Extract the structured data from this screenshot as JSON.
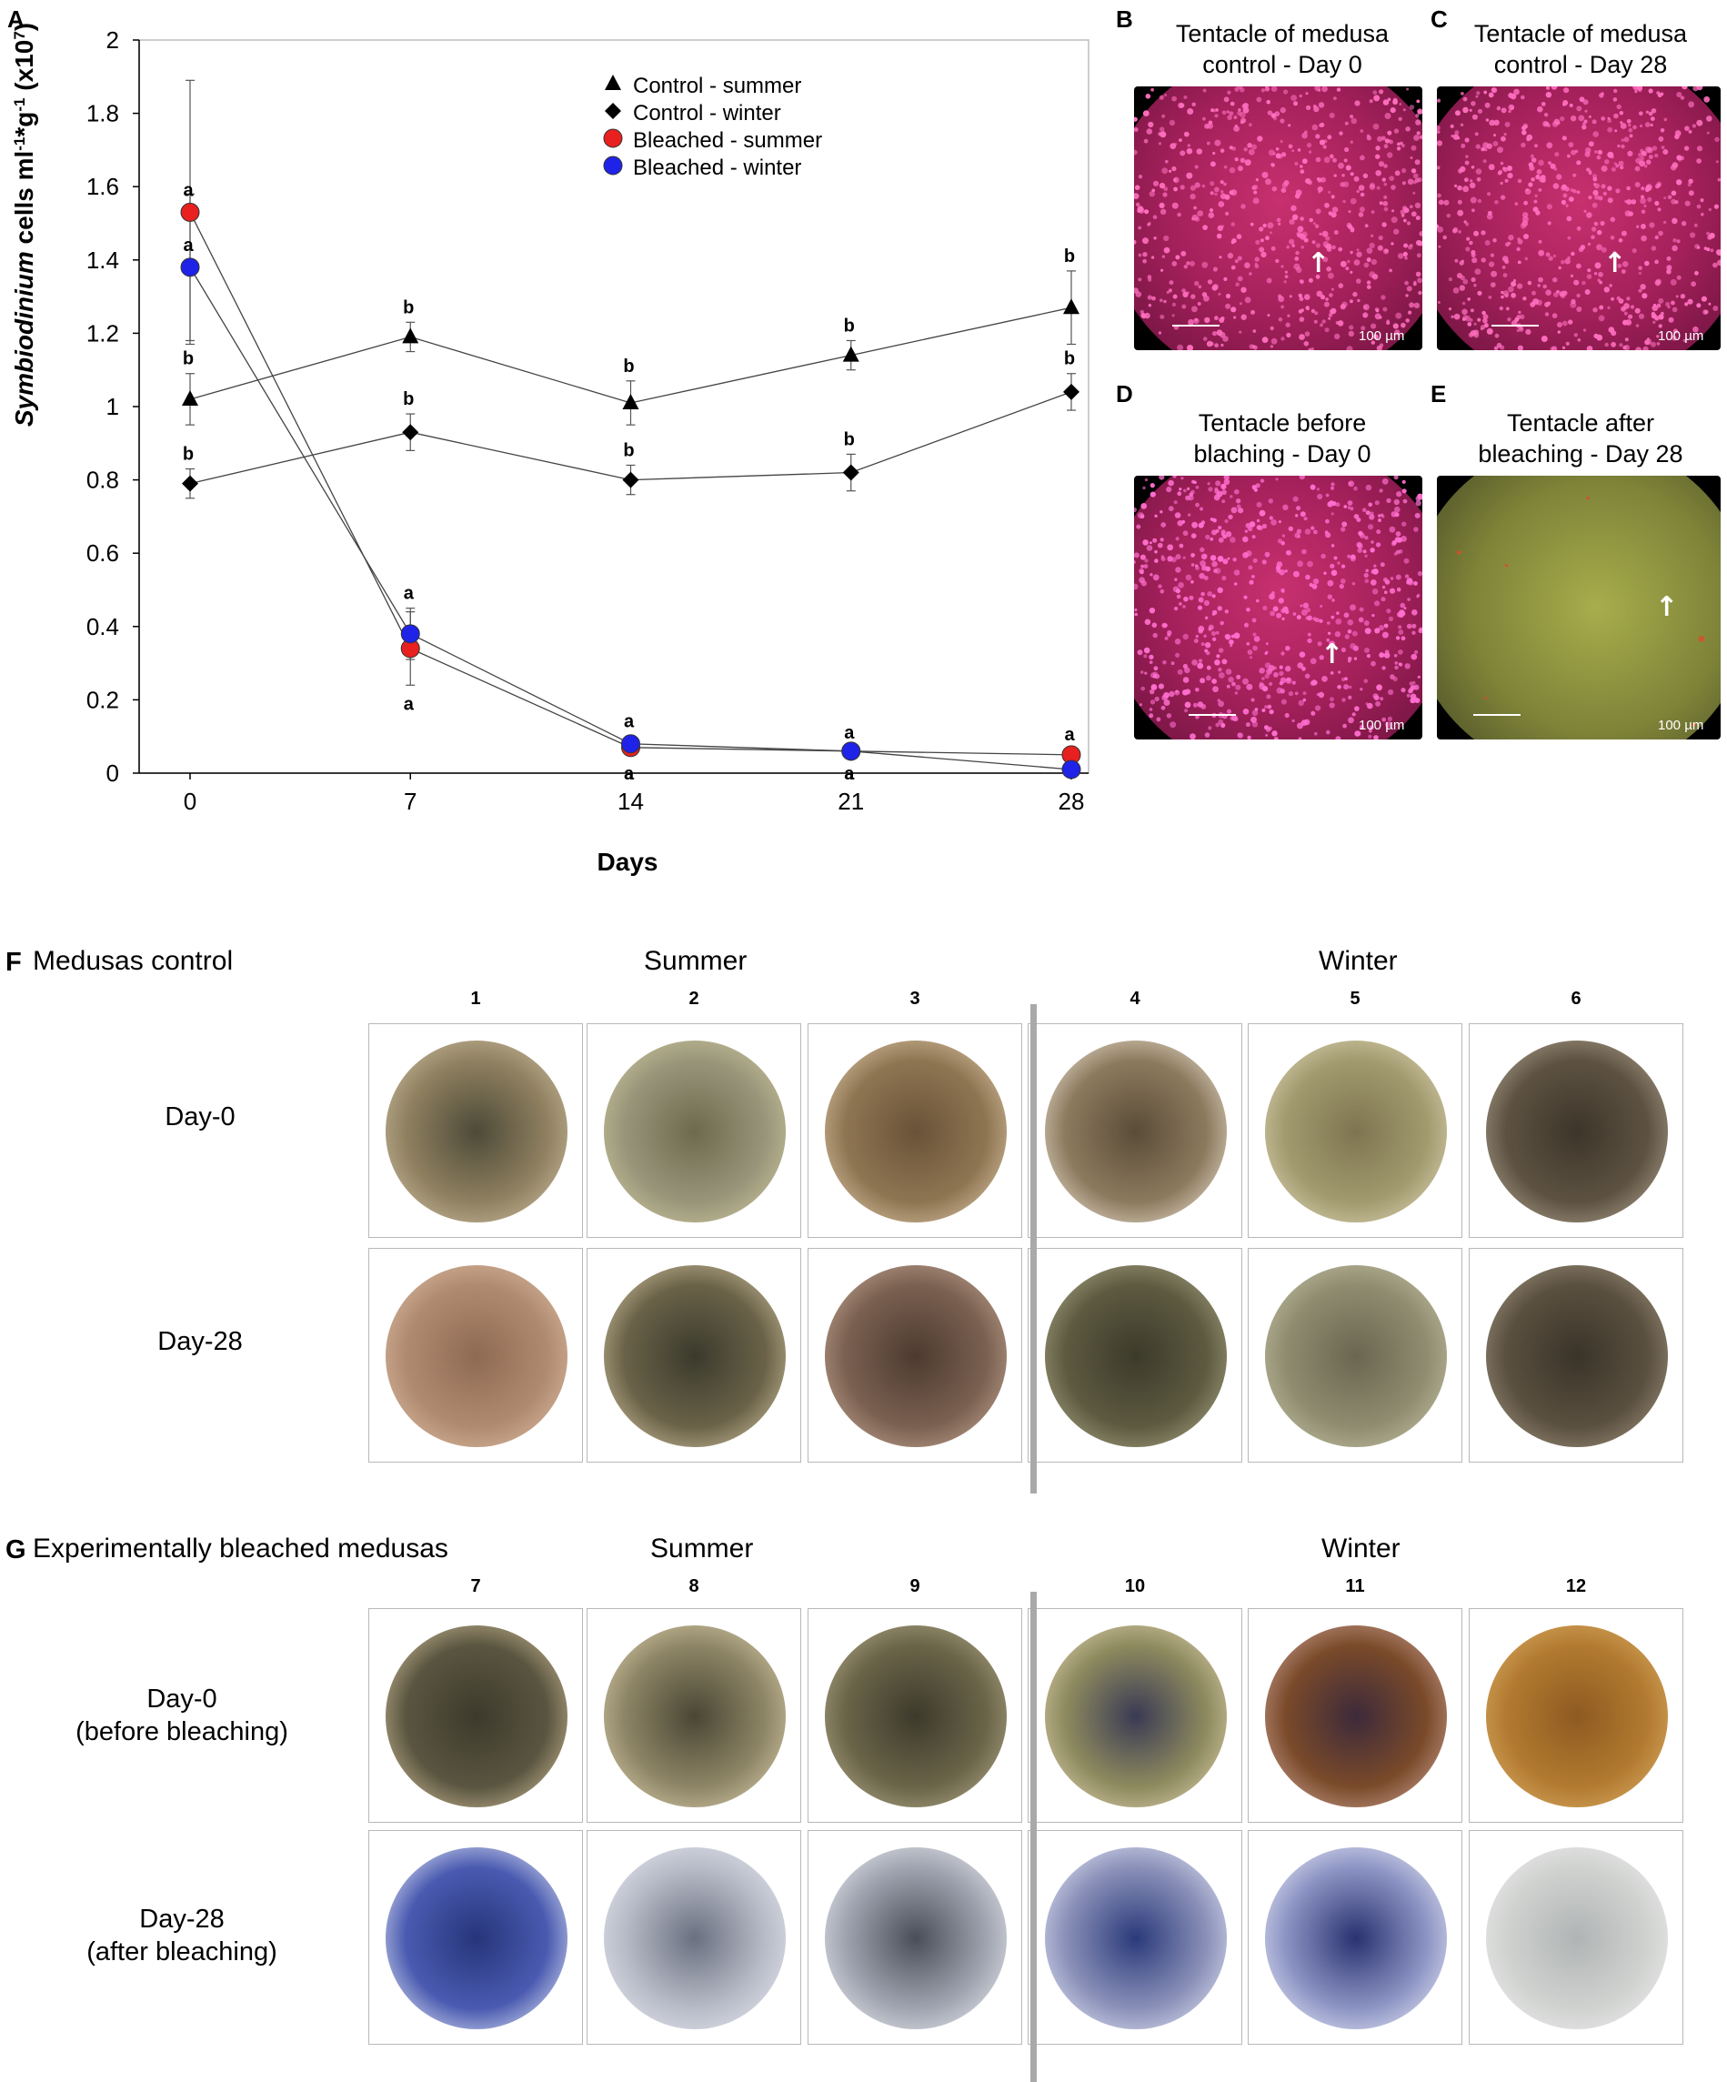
{
  "panel_labels": {
    "a": "A",
    "b": "B",
    "c": "C",
    "d": "D",
    "e": "E",
    "f": "F",
    "g": "G"
  },
  "chart_data": {
    "type": "line",
    "ylabel_italic": "Symbiodinium",
    "ylabel_rest": " cells ml",
    "ylabel_sup1": "-1",
    "ylabel_mid": "*g",
    "ylabel_sup2": "-1",
    "ylabel_mid2": " (x10",
    "ylabel_sup3": "7",
    "ylabel_end": ")",
    "xlabel": "Days",
    "x": [
      0,
      7,
      14,
      21,
      28
    ],
    "x_tick_labels": [
      "0",
      "7",
      "14",
      "21",
      "28"
    ],
    "y_tick_labels": [
      "0",
      "0.2",
      "0.4",
      "0.6",
      "0.8",
      "1",
      "1.2",
      "1.4",
      "1.6",
      "1.8",
      "2"
    ],
    "ylim": [
      0,
      2
    ],
    "legend_position": "top-right",
    "series": [
      {
        "name": "Control - summer",
        "marker": "triangle",
        "color": "#000000",
        "values": [
          1.02,
          1.19,
          1.01,
          1.14,
          1.27
        ],
        "errors": [
          0.07,
          0.04,
          0.06,
          0.04,
          0.1
        ],
        "letters": [
          "b",
          "b",
          "b",
          "b",
          "b"
        ]
      },
      {
        "name": "Control - winter",
        "marker": "diamond",
        "color": "#000000",
        "values": [
          0.79,
          0.93,
          0.8,
          0.82,
          1.04
        ],
        "errors": [
          0.04,
          0.05,
          0.04,
          0.05,
          0.05
        ],
        "letters": [
          "b",
          "b",
          "b",
          "b",
          "b"
        ]
      },
      {
        "name": "Bleached - summer",
        "marker": "circle",
        "color": "#e8201f",
        "values": [
          1.53,
          0.34,
          0.07,
          0.06,
          0.05
        ],
        "errors": [
          0.36,
          0.1,
          0.02,
          0.01,
          0.01
        ],
        "letters": [
          "a",
          "a",
          "a",
          "a",
          "a"
        ]
      },
      {
        "name": "Bleached - winter",
        "marker": "circle",
        "color": "#1f23e8",
        "values": [
          1.38,
          0.38,
          0.08,
          0.06,
          0.01
        ],
        "errors": [
          0.2,
          0.07,
          0.02,
          0.01,
          0.01
        ],
        "letters": [
          "a",
          "a",
          "a",
          "a",
          "a"
        ]
      }
    ]
  },
  "micrographs": {
    "b": {
      "caption_line1": "Tentacle of medusa",
      "caption_line2": "control - Day 0",
      "scale": "100 µm"
    },
    "c": {
      "caption_line1": "Tentacle of medusa",
      "caption_line2": "control - Day 28",
      "scale": "100 µm"
    },
    "d": {
      "caption_line1": "Tentacle before",
      "caption_line2": "blaching - Day 0",
      "scale": "100 µm"
    },
    "e": {
      "caption_line1": "Tentacle after",
      "caption_line2": "bleaching - Day 28",
      "scale": "100 µm"
    }
  },
  "panel_f": {
    "title": "Medusas control",
    "season_summer": "Summer",
    "season_winter": "Winter",
    "columns": [
      "1",
      "2",
      "3",
      "4",
      "5",
      "6"
    ],
    "row1_label": "Day-0",
    "row2_label": "Day-28"
  },
  "panel_g": {
    "title": "Experimentally bleached medusas",
    "season_summer": "Summer",
    "season_winter": "Winter",
    "columns": [
      "7",
      "8",
      "9",
      "10",
      "11",
      "12"
    ],
    "row1_label_line1": "Day-0",
    "row1_label_line2": "(before bleaching)",
    "row2_label_line1": "Day-28",
    "row2_label_line2": "(after bleaching)"
  },
  "colors": {
    "control_summer": "#000000",
    "control_winter": "#000000",
    "bleached_summer": "#e8201f",
    "bleached_winter": "#1f23e8",
    "fluorescence_healthy": "#e0308a",
    "fluorescence_bleached": "#8a8f3c"
  }
}
